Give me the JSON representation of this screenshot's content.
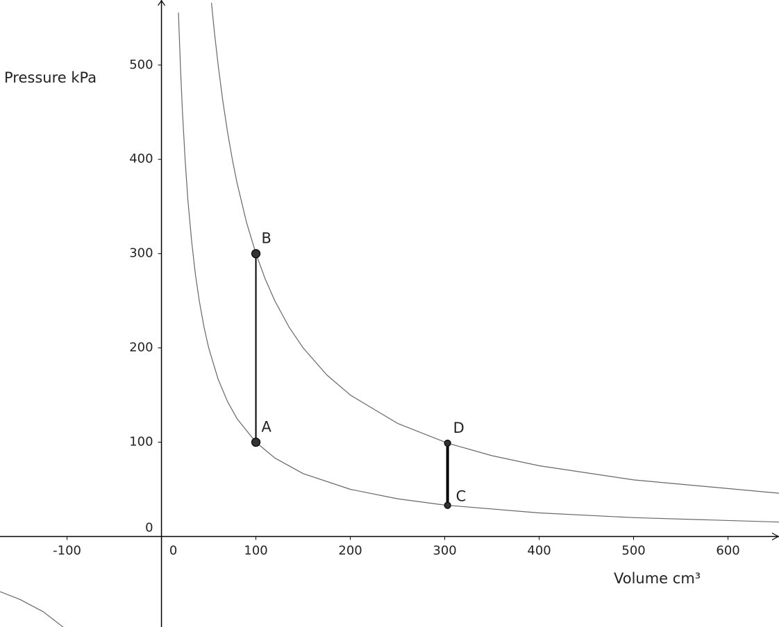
{
  "chart_data": {
    "type": "function-plot",
    "y_label": "Pressure kPa",
    "x_label": "Volume cm³",
    "xlim": [
      -171,
      654
    ],
    "ylim": [
      -96,
      569
    ],
    "xticks": [
      -100,
      0,
      100,
      200,
      300,
      400,
      500,
      600
    ],
    "yticks": [
      0,
      100,
      200,
      300,
      400,
      500
    ],
    "series": [
      {
        "color": "#666666",
        "x": [
          -171,
          -150,
          -125,
          -104,
          null,
          18,
          20,
          22,
          25,
          28,
          32,
          36,
          40,
          45,
          50,
          60,
          70,
          80,
          100,
          120,
          150,
          200,
          250,
          300,
          400,
          500,
          654
        ],
        "values": [
          -58.5,
          -66.7,
          -80,
          -96.2,
          null,
          555.6,
          500,
          454.5,
          400,
          357.1,
          312.5,
          277.8,
          250,
          222.2,
          200,
          166.7,
          142.9,
          125,
          100,
          83.3,
          66.7,
          50,
          40,
          33.3,
          25,
          20,
          15.3
        ]
      },
      {
        "color": "#666666",
        "x": [
          53,
          56,
          60,
          65,
          70,
          75,
          80,
          90,
          100,
          110,
          120,
          135,
          150,
          175,
          200,
          250,
          303,
          350,
          400,
          500,
          654
        ],
        "values": [
          566,
          535.7,
          500,
          461.5,
          428.6,
          400,
          375,
          333.3,
          300,
          272.7,
          250,
          222.2,
          200,
          171.4,
          150,
          120,
          99,
          85.7,
          75,
          60,
          45.9
        ]
      }
    ],
    "points": [
      {
        "label": "A",
        "x": 100,
        "y": 100
      },
      {
        "label": "B",
        "x": 100,
        "y": 300
      },
      {
        "label": "C",
        "x": 303,
        "y": 33
      },
      {
        "label": "D",
        "x": 303,
        "y": 99
      }
    ]
  }
}
